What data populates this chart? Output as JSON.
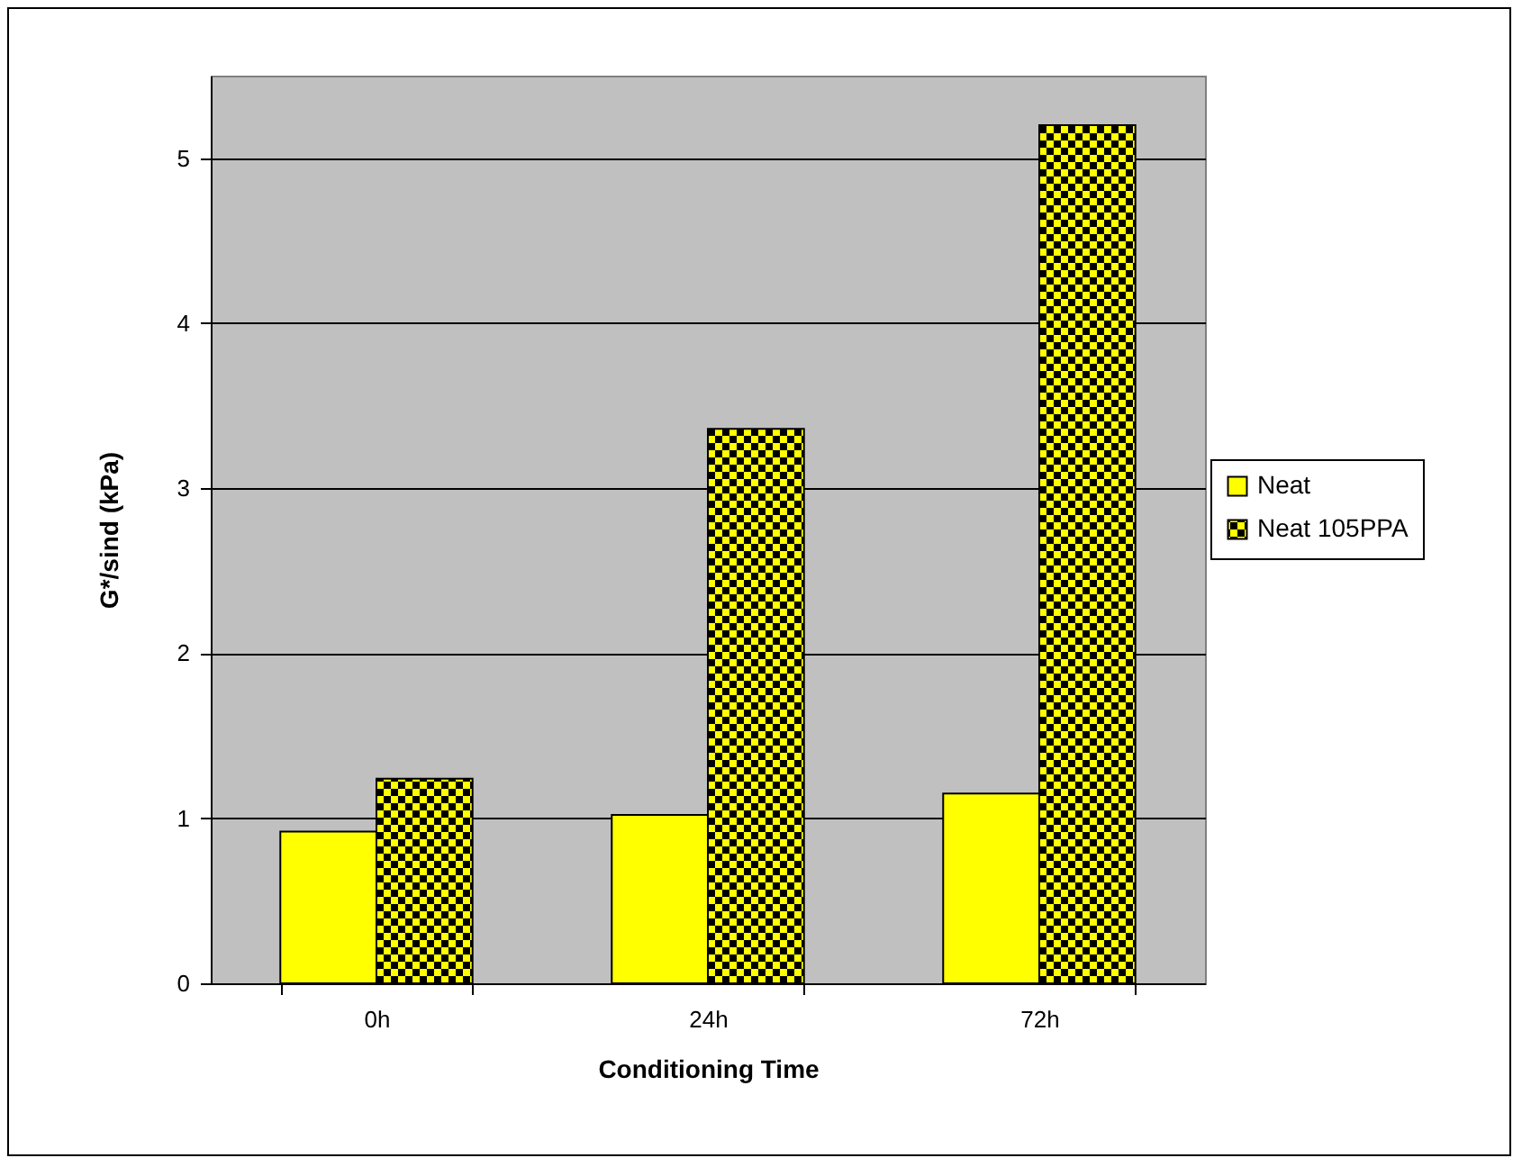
{
  "chart_data": {
    "type": "bar",
    "xlabel": "Conditioning Time",
    "ylabel": "G*/sind (kPa)",
    "categories": [
      "0h",
      "24h",
      "72h"
    ],
    "series": [
      {
        "name": "Neat",
        "color": "#ffff00",
        "values": [
          0.92,
          1.02,
          1.15
        ]
      },
      {
        "name": "Neat 105PPA",
        "color": "#000000",
        "values": [
          1.24,
          3.36,
          5.2
        ]
      }
    ],
    "ylim": [
      0,
      5.5
    ],
    "yticks": [
      0,
      1,
      2,
      3,
      4,
      5
    ],
    "grid": "y",
    "legend": "right"
  }
}
